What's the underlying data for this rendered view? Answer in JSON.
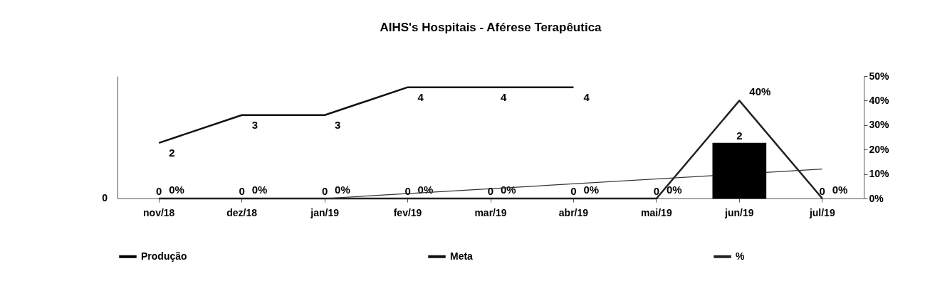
{
  "chart_data": {
    "type": "bar",
    "title": "AIHS's Hospitais - Aférese Terapêutica",
    "categories": [
      "nov/18",
      "dez/18",
      "jan/19",
      "fev/19",
      "mar/19",
      "abr/19",
      "mai/19",
      "jun/19",
      "jul/19"
    ],
    "series": [
      {
        "name": "Produção",
        "color": "#000000",
        "values": [
          0,
          0,
          0,
          0,
          0,
          0,
          0,
          2,
          0
        ],
        "value_labels": [
          "0",
          "0",
          "0",
          "0",
          "0",
          "0",
          "0",
          "2",
          "0"
        ]
      },
      {
        "name": "Meta",
        "type": "line",
        "color": "#111111",
        "values": [
          2,
          3,
          3,
          4,
          4,
          4,
          null,
          null,
          null
        ],
        "value_labels": [
          "2",
          "3",
          "3",
          "4",
          "4",
          "4",
          null,
          null,
          null
        ]
      },
      {
        "name": "%",
        "type": "line",
        "axis": "y2",
        "color": "#222222",
        "values": [
          0,
          0,
          0,
          0,
          0,
          0,
          0,
          40,
          0
        ],
        "value_labels": [
          "0%",
          "0%",
          "0%",
          "0%",
          "0%",
          "0%",
          "0%",
          "40%",
          "0%"
        ]
      },
      {
        "type": "line",
        "axis": "y2",
        "color": "#333333",
        "x": [
          "jan/19",
          "jul/19"
        ],
        "values": [
          0,
          12
        ]
      }
    ],
    "ylim": [
      0,
      4.4
    ],
    "annotations": [
      "0"
    ],
    "y2lim": [
      0,
      50
    ],
    "y2ticks": [
      {
        "value": 0,
        "label": "0%"
      },
      {
        "value": 10,
        "label": "10%"
      },
      {
        "value": 20,
        "label": "20%"
      },
      {
        "value": 30,
        "label": "30%"
      },
      {
        "value": 40,
        "label": "40%"
      },
      {
        "value": 50,
        "label": "50%"
      }
    ],
    "legend": "bottom",
    "grid": false
  }
}
